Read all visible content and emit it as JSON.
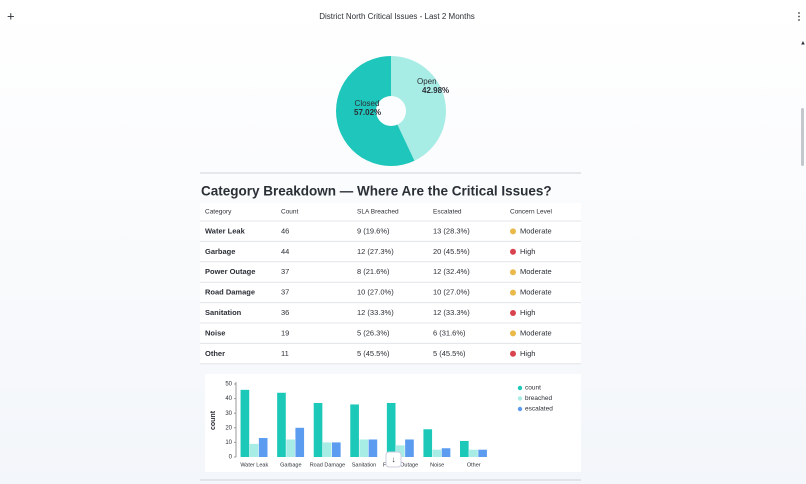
{
  "header": {
    "title": "District North Critical Issues - Last 2 Months"
  },
  "chart_data": [
    {
      "type": "pie",
      "categories": [
        "Open",
        "Closed"
      ],
      "values": [
        42.98,
        57.02
      ],
      "value_labels": [
        "42.98%",
        "57.02%"
      ],
      "colors": [
        "#a8ece6",
        "#1fc6bb"
      ]
    },
    {
      "type": "bar",
      "categories": [
        "Water Leak",
        "Garbage",
        "Road Damage",
        "Sanitation",
        "Power Outage",
        "Noise",
        "Other"
      ],
      "series": [
        {
          "name": "count",
          "color": "#1cc8b8",
          "values": [
            46,
            44,
            37,
            36,
            37,
            19,
            11
          ]
        },
        {
          "name": "breached",
          "color": "#a8ece6",
          "values": [
            9,
            12,
            10,
            12,
            8,
            5,
            5
          ]
        },
        {
          "name": "escalated",
          "color": "#5b9cf0",
          "values": [
            13,
            20,
            10,
            12,
            12,
            6,
            5
          ]
        }
      ],
      "y_label": "count",
      "ylim": [
        0,
        50
      ],
      "yticks": [
        0,
        10,
        20,
        30,
        40,
        50
      ]
    }
  ],
  "section": {
    "title": "Category Breakdown — Where Are the Critical Issues?"
  },
  "table": {
    "columns": [
      "Category",
      "Count",
      "SLA Breached",
      "Escalated",
      "Concern Level"
    ],
    "rows": [
      [
        "Water Leak",
        "46",
        "9 (19.6%)",
        "13 (28.3%)",
        "Moderate"
      ],
      [
        "Garbage",
        "44",
        "12 (27.3%)",
        "20 (45.5%)",
        "High"
      ],
      [
        "Power Outage",
        "37",
        "8 (21.6%)",
        "12 (32.4%)",
        "Moderate"
      ],
      [
        "Road Damage",
        "37",
        "10 (27.0%)",
        "10 (27.0%)",
        "Moderate"
      ],
      [
        "Sanitation",
        "36",
        "12 (33.3%)",
        "12 (33.3%)",
        "High"
      ],
      [
        "Noise",
        "19",
        "5 (26.3%)",
        "6 (31.6%)",
        "Moderate"
      ],
      [
        "Other",
        "11",
        "5 (45.5%)",
        "5 (45.5%)",
        "High"
      ]
    ],
    "level_colors": {
      "Moderate": "#e9b949",
      "High": "#d8434f"
    }
  }
}
